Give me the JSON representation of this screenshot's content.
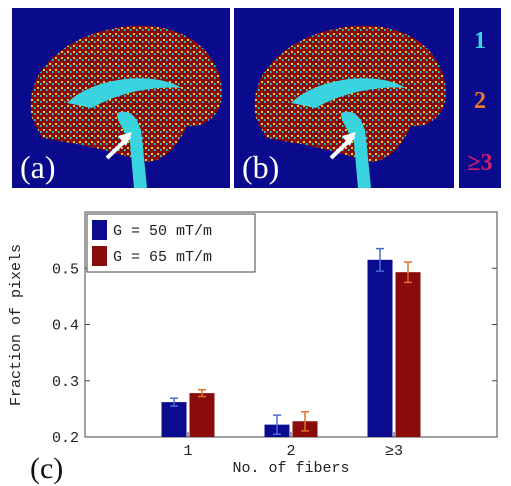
{
  "panels": {
    "a": "(a)",
    "b": "(b)",
    "c": "(c)"
  },
  "fiber_legend": [
    "1",
    "2",
    "≥3"
  ],
  "chart_data": {
    "type": "bar",
    "xlabel": "No. of fibers",
    "ylabel": "Fraction of pixels",
    "categories": [
      "1",
      "2",
      "≥3"
    ],
    "series": [
      {
        "name": "G = 50 mT/m",
        "color": "#0b0b8f",
        "error_color": "#4a6ad8",
        "values": [
          0.262,
          0.222,
          0.515
        ],
        "errors": [
          0.007,
          0.017,
          0.02
        ]
      },
      {
        "name": "G = 65 mT/m",
        "color": "#8a0b0b",
        "error_color": "#e0702a",
        "values": [
          0.278,
          0.228,
          0.493
        ],
        "errors": [
          0.006,
          0.017,
          0.018
        ]
      }
    ],
    "ylim": [
      0.2,
      0.6
    ],
    "yticks": [
      0.2,
      0.3,
      0.4,
      0.5
    ],
    "legend": "upper left"
  }
}
